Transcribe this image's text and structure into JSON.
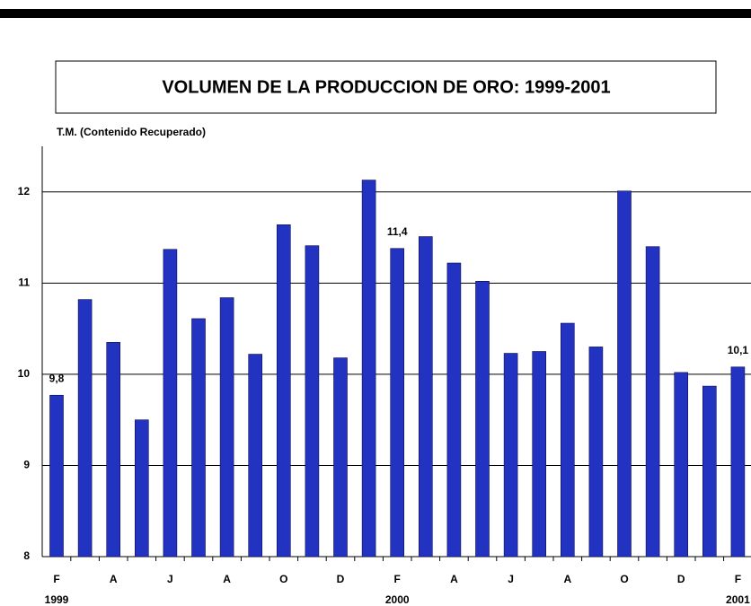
{
  "chart_data": {
    "type": "bar",
    "title": "VOLUMEN  DE LA PRODUCCION DE ORO: 1999-2001",
    "y_label": "T.M. (Contenido Recuperado)",
    "categories": [
      "F",
      null,
      "A",
      null,
      "J",
      null,
      "A",
      null,
      "O",
      null,
      "D",
      null,
      "F",
      null,
      "A",
      null,
      "J",
      null,
      "A",
      null,
      "O",
      null,
      "D",
      null,
      "F"
    ],
    "years": [
      "1999",
      null,
      null,
      null,
      null,
      null,
      null,
      null,
      null,
      null,
      null,
      null,
      "2000",
      null,
      null,
      null,
      null,
      null,
      null,
      null,
      null,
      null,
      null,
      null,
      "2001"
    ],
    "values": [
      9.77,
      10.82,
      10.35,
      9.5,
      11.37,
      10.61,
      10.84,
      10.22,
      11.64,
      11.41,
      10.18,
      12.13,
      11.38,
      11.51,
      11.22,
      11.02,
      10.23,
      10.25,
      10.56,
      10.3,
      12.01,
      11.4,
      10.02,
      9.87,
      10.08
    ],
    "value_labels": [
      "9,8",
      null,
      null,
      null,
      null,
      null,
      null,
      null,
      null,
      null,
      null,
      null,
      "11,4",
      null,
      null,
      null,
      null,
      null,
      null,
      null,
      null,
      null,
      null,
      null,
      "10,1"
    ],
    "color": "#2233c2",
    "ylim": [
      8,
      12.5
    ],
    "yticks": [
      8,
      9,
      10,
      11,
      12
    ],
    "grid": true
  }
}
